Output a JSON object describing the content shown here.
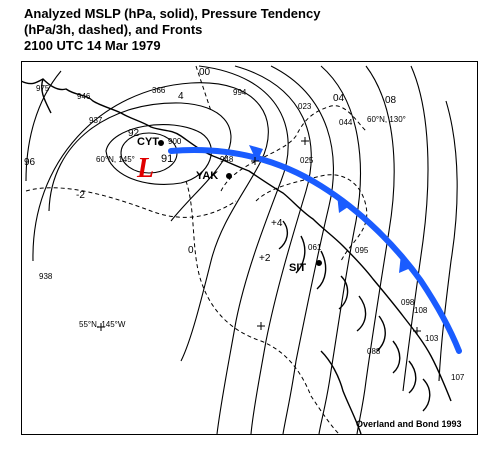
{
  "title_lines": [
    "Analyzed MSLP (hPa, solid), Pressure Tendency",
    "(hPa/3h, dashed), and Fronts",
    "2100 UTC  14 Mar 1979"
  ],
  "credit": "Overland and Bond 1993",
  "low_symbol": "L",
  "low_center_pressure": "91",
  "stations": [
    "CYT",
    "YAK",
    "SIT"
  ],
  "coordinate_labels": [
    "60°N, 145°",
    "60°N, 130°",
    "55°N, 145°W"
  ],
  "isobar_labels": [
    "92",
    "96",
    "0",
    "00",
    "04",
    "08"
  ],
  "tendency_labels": [
    "-2",
    "+2",
    "+4",
    "4"
  ],
  "station_pressures": [
    "975",
    "946",
    "937",
    "366",
    "994",
    "023",
    "044",
    "025",
    "938",
    "061",
    "095",
    "098",
    "108",
    "103",
    "088",
    "107",
    "948",
    "900"
  ],
  "colors": {
    "front": "#1a5cff",
    "ink": "#000000",
    "background": "#ffffff"
  }
}
